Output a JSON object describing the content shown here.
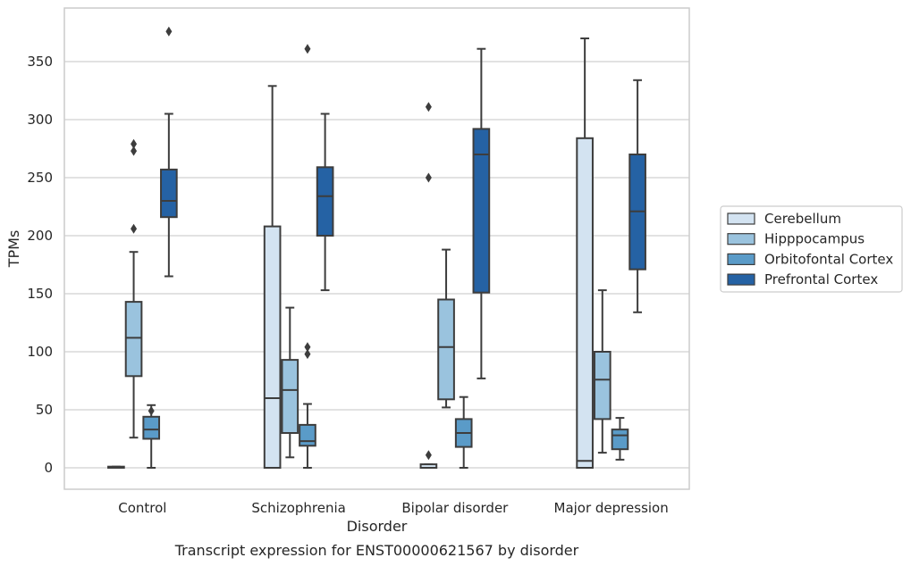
{
  "chart_data": {
    "type": "box",
    "title": "",
    "caption": "Transcript expression for ENST00000621567 by disorder",
    "xlabel": "Disorder",
    "ylabel": "TPMs",
    "ylim": [
      -18,
      397
    ],
    "yticks": [
      0,
      50,
      100,
      150,
      200,
      250,
      300,
      350
    ],
    "grid": "horizontal",
    "legend_position": "right",
    "categories": [
      "Control",
      "Schizophrenia",
      "Bipolar disorder",
      "Major depression"
    ],
    "series": [
      {
        "name": "Cerebellum",
        "color": "#d3e3f1",
        "boxes": [
          {
            "min": 0,
            "q1": 0,
            "median": 0,
            "q3": 1,
            "max": 1,
            "outliers": []
          },
          {
            "min": 0,
            "q1": 0,
            "median": 60,
            "q3": 208,
            "max": 329,
            "outliers": []
          },
          {
            "min": 0,
            "q1": 0,
            "median": 0,
            "q3": 3,
            "max": 3,
            "outliers": [
              311,
              250,
              11
            ]
          },
          {
            "min": 0,
            "q1": 0,
            "median": 6,
            "q3": 284,
            "max": 370,
            "outliers": []
          }
        ]
      },
      {
        "name": "Hipppocampus",
        "color": "#9ac3de",
        "boxes": [
          {
            "min": 26,
            "q1": 79,
            "median": 112,
            "q3": 143,
            "max": 186,
            "outliers": [
              279,
              273,
              206
            ]
          },
          {
            "min": 9,
            "q1": 30,
            "median": 67,
            "q3": 93,
            "max": 138,
            "outliers": []
          },
          {
            "min": 52,
            "q1": 59,
            "median": 104,
            "q3": 145,
            "max": 188,
            "outliers": []
          },
          {
            "min": 13,
            "q1": 42,
            "median": 76,
            "q3": 100,
            "max": 153,
            "outliers": []
          }
        ]
      },
      {
        "name": "Orbitofontal Cortex",
        "color": "#5a9bc8",
        "boxes": [
          {
            "min": 0,
            "q1": 25,
            "median": 33,
            "q3": 44,
            "max": 54,
            "outliers": [
              49
            ]
          },
          {
            "min": 0,
            "q1": 19,
            "median": 23,
            "q3": 37,
            "max": 55,
            "outliers": [
              98,
              104,
              361
            ]
          },
          {
            "min": 0,
            "q1": 18,
            "median": 30,
            "q3": 42,
            "max": 61,
            "outliers": []
          },
          {
            "min": 7,
            "q1": 16,
            "median": 28,
            "q3": 33,
            "max": 43,
            "outliers": []
          }
        ]
      },
      {
        "name": "Prefrontal Cortex",
        "color": "#2562a4",
        "boxes": [
          {
            "min": 165,
            "q1": 216,
            "median": 230,
            "q3": 257,
            "max": 305,
            "outliers": [
              376
            ]
          },
          {
            "min": 153,
            "q1": 200,
            "median": 234,
            "q3": 259,
            "max": 305,
            "outliers": []
          },
          {
            "min": 77,
            "q1": 151,
            "median": 270,
            "q3": 292,
            "max": 361,
            "outliers": []
          },
          {
            "min": 134,
            "q1": 171,
            "median": 221,
            "q3": 270,
            "max": 334,
            "outliers": []
          }
        ]
      }
    ]
  }
}
